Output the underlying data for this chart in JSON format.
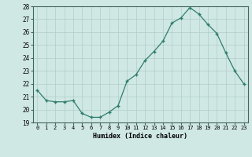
{
  "x": [
    0,
    1,
    2,
    3,
    4,
    5,
    6,
    7,
    8,
    9,
    10,
    11,
    12,
    13,
    14,
    15,
    16,
    17,
    18,
    19,
    20,
    21,
    22,
    23
  ],
  "y": [
    21.5,
    20.7,
    20.6,
    20.6,
    20.7,
    19.7,
    19.4,
    19.4,
    19.8,
    20.3,
    22.2,
    22.7,
    23.8,
    24.5,
    25.3,
    26.7,
    27.1,
    27.9,
    27.4,
    26.6,
    25.9,
    24.4,
    23.0,
    22.0
  ],
  "line_color": "#2e7d6e",
  "marker": "+",
  "marker_color": "#2e7d6e",
  "bg_color": "#d0e8e4",
  "grid_color": "#b0cdc8",
  "xlabel": "Humidex (Indice chaleur)",
  "ylim": [
    19,
    28
  ],
  "xlim": [
    -0.5,
    23.5
  ],
  "yticks": [
    19,
    20,
    21,
    22,
    23,
    24,
    25,
    26,
    27,
    28
  ],
  "xticks": [
    0,
    1,
    2,
    3,
    4,
    5,
    6,
    7,
    8,
    9,
    10,
    11,
    12,
    13,
    14,
    15,
    16,
    17,
    18,
    19,
    20,
    21,
    22,
    23
  ]
}
